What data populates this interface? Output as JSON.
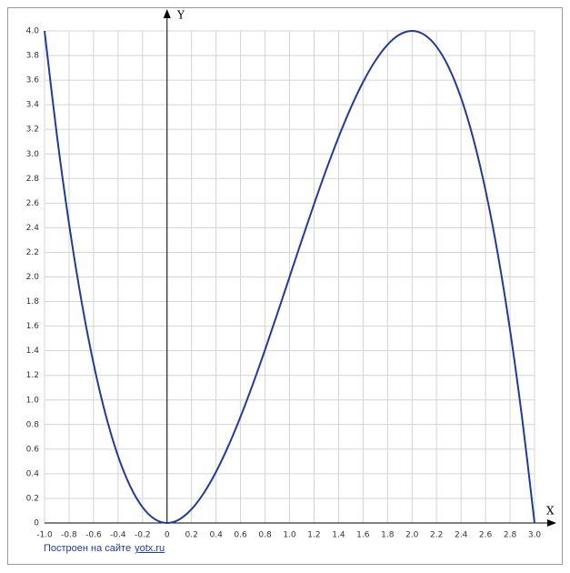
{
  "chart_data": {
    "type": "line",
    "x_label": "X",
    "y_label": "Y",
    "x": [
      -1.0,
      -0.9,
      -0.8,
      -0.7,
      -0.6,
      -0.5,
      -0.4,
      -0.3,
      -0.2,
      -0.1,
      0,
      0.1,
      0.2,
      0.3,
      0.4,
      0.5,
      0.6,
      0.7,
      0.8,
      0.9,
      1.0,
      1.1,
      1.2,
      1.3,
      1.4,
      1.5,
      1.6,
      1.7,
      1.8,
      1.9,
      2.0,
      2.1,
      2.2,
      2.3,
      2.4,
      2.5,
      2.6,
      2.7,
      2.8,
      2.9,
      3.0
    ],
    "series": [
      {
        "color": "#1f3c99",
        "values": [
          4,
          3.159,
          2.432,
          1.813,
          1.296,
          0.875,
          0.544,
          0.297,
          0.128,
          0.031,
          0,
          0.029,
          0.112,
          0.243,
          0.416,
          0.625,
          0.864,
          1.127,
          1.408,
          1.701,
          2,
          2.299,
          2.592,
          2.873,
          3.136,
          3.375,
          3.584,
          3.757,
          3.888,
          3.971,
          4,
          3.969,
          3.872,
          3.703,
          3.456,
          3.125,
          2.704,
          2.187,
          1.568,
          0.841,
          0
        ]
      }
    ],
    "xlim": [
      -1.0,
      3.0
    ],
    "ylim": [
      0,
      4.0
    ],
    "xticks": [
      {
        "value": -1.0,
        "label": "-1.0"
      },
      -0.8,
      -0.6,
      -0.4,
      -0.2,
      0,
      0.2,
      0.4,
      0.6,
      0.8,
      {
        "value": 1.0,
        "label": "1.0"
      },
      1.2,
      1.4,
      1.6,
      1.8,
      {
        "value": 2.0,
        "label": "2.0"
      },
      2.2,
      2.4,
      2.6,
      2.8,
      {
        "value": 3.0,
        "label": "3.0"
      }
    ],
    "yticks": [
      0,
      0.2,
      0.4,
      0.6,
      0.8,
      {
        "value": 1.0,
        "label": "1.0"
      },
      1.2,
      1.4,
      1.6,
      1.8,
      {
        "value": 2.0,
        "label": "2.0"
      },
      2.2,
      2.4,
      2.6,
      2.8,
      {
        "value": 3.0,
        "label": "3.0"
      },
      3.2,
      3.4,
      3.6,
      3.8,
      {
        "value": 4.0,
        "label": "4.0"
      }
    ],
    "grid": true,
    "footer": {
      "text": "Построен на сайте",
      "link": "yotx.ru"
    }
  }
}
